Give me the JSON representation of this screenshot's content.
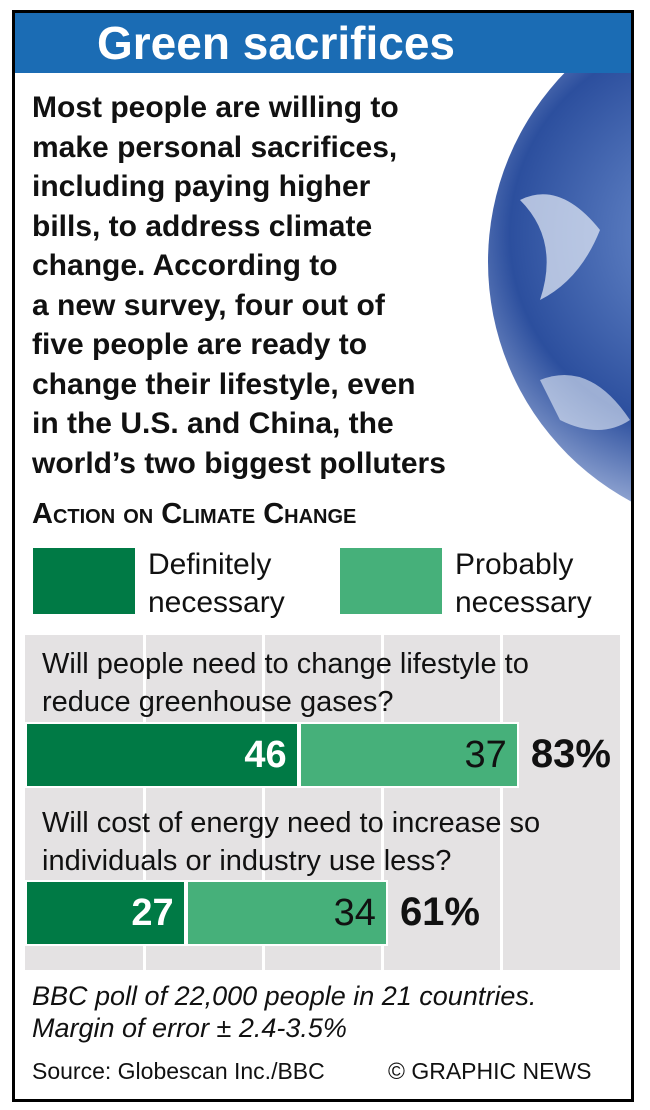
{
  "chart_data": {
    "type": "bar",
    "orientation": "horizontal",
    "stacked": true,
    "title": "Green sacrifices",
    "subtitle_lines": [
      "Most people are willing to",
      "make personal sacrifices,",
      "including paying higher",
      "bills, to address climate",
      "change. According to",
      "a new survey, four out of",
      "five people are ready to",
      "change their lifestyle, even",
      "in the U.S. and China, the",
      "world’s two biggest polluters"
    ],
    "heading": "Action on Climate Change",
    "categories": [
      "Will people need to change lifestyle to reduce greenhouse gases?",
      "Will cost of energy need to increase so individuals or industry use less?"
    ],
    "series": [
      {
        "name": "Definitely necessary",
        "color": "#007a45",
        "values": [
          46,
          27
        ]
      },
      {
        "name": "Probably necessary",
        "color": "#46b07a",
        "values": [
          37,
          34
        ]
      }
    ],
    "totals": {
      "values": [
        83,
        61
      ],
      "value_labels": [
        "83%",
        "61%"
      ]
    },
    "xlim": [
      0,
      100
    ],
    "xticks": [
      20,
      40,
      60,
      80
    ],
    "grid": true,
    "footnote": "BBC poll of 22,000 people in 21 countries. Margin of error ± 2.4-3.5%",
    "source": "Source: Globescan Inc./BBC",
    "credit": "© GRAPHIC NEWS"
  }
}
